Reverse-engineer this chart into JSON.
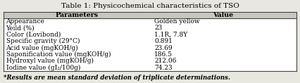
{
  "title": "Table 1: Physicochemical characteristics of TSO",
  "col_headers": [
    "Parameters",
    "Value"
  ],
  "rows": [
    [
      "Appearance",
      "Golden yellow"
    ],
    [
      "Yeild (%)",
      "23"
    ],
    [
      "Color (Lovibond)",
      "1.1R, 7.8Y"
    ],
    [
      "Specific gravity (29°C)",
      "0.891"
    ],
    [
      "Acid value (mgKOH/g)",
      "23.69"
    ],
    [
      "Saponification value (mgKOH/g)",
      "186.5"
    ],
    [
      "Hydroxyl value (mgKOH/g)",
      "212.06"
    ],
    [
      "Iodine value (gI₂/100g)",
      "74.23"
    ]
  ],
  "footnote": "*Results are mean standard deviation of triplicate determinations.",
  "bg_color": "#e8e8e0",
  "table_bg": "#f0f0ea",
  "header_bg": "#c8c8c0",
  "title_fontsize": 7.5,
  "body_fontsize": 6.5,
  "header_fontsize": 6.8,
  "footnote_fontsize": 6.2,
  "col_split": 0.5
}
